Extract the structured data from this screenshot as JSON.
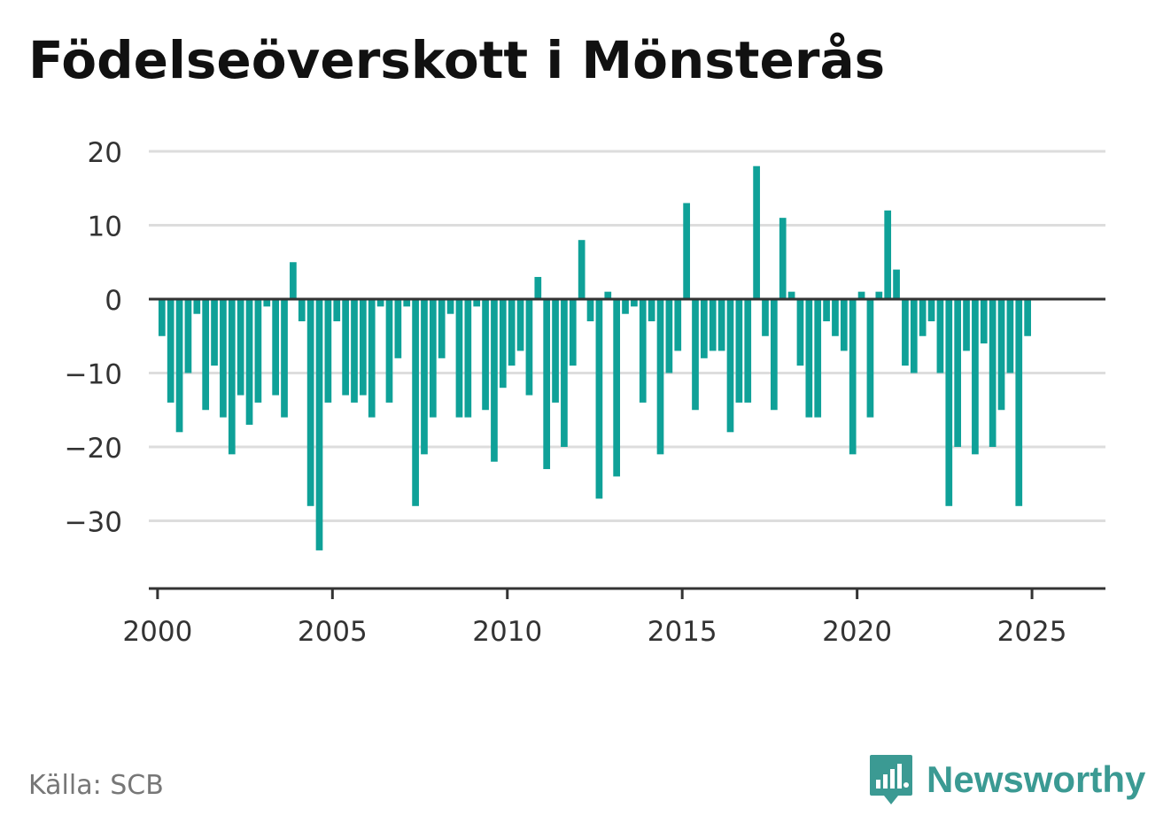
{
  "title": "Födelseöverskott i Mönsterås",
  "source": "Källa: SCB",
  "brand": {
    "name": "Newsworthy",
    "color": "#3b9a93"
  },
  "colors": {
    "bar": "#0fa198",
    "grid": "#dddddd",
    "axis": "#333333",
    "text": "#333333"
  },
  "chart_data": {
    "type": "bar",
    "title": "Födelseöverskott i Mönsterås",
    "xlabel": "",
    "ylabel": "",
    "ylim": [
      -38,
      22
    ],
    "yticks": [
      20,
      10,
      0,
      -10,
      -20,
      -30
    ],
    "ytick_labels": [
      "20",
      "10",
      "0",
      "−10",
      "−20",
      "−30"
    ],
    "xlim": [
      1999.75,
      2027.1
    ],
    "xticks": [
      2000,
      2005,
      2010,
      2015,
      2020,
      2025
    ],
    "xtick_labels": [
      "2000",
      "2005",
      "2010",
      "2015",
      "2020",
      "2025"
    ],
    "grid": true,
    "legend": "none",
    "x_start": "2000 Q1",
    "interval": "quarter",
    "values": [
      -5,
      -14,
      -18,
      -10,
      -2,
      -15,
      -9,
      -16,
      -21,
      -13,
      -17,
      -14,
      -1,
      -13,
      -16,
      5,
      -3,
      -28,
      -34,
      -14,
      -3,
      -13,
      -14,
      -13,
      -16,
      -1,
      -14,
      -8,
      -1,
      -28,
      -21,
      -16,
      -8,
      -2,
      -16,
      -16,
      -1,
      -15,
      -22,
      -12,
      -9,
      -7,
      -13,
      3,
      -23,
      -14,
      -20,
      -9,
      8,
      -3,
      -27,
      1,
      -24,
      -2,
      -1,
      -14,
      -3,
      -21,
      -10,
      -7,
      13,
      -15,
      -8,
      -7,
      -7,
      -18,
      -14,
      -14,
      18,
      -5,
      -15,
      11,
      1,
      -9,
      -16,
      -16,
      -3,
      -5,
      -7,
      -21,
      1,
      -16,
      1,
      12,
      4,
      -9,
      -10,
      -5,
      -3,
      -10,
      -28,
      -20,
      -7,
      -21,
      -6,
      -20,
      -15,
      -10,
      -28,
      -5
    ]
  }
}
